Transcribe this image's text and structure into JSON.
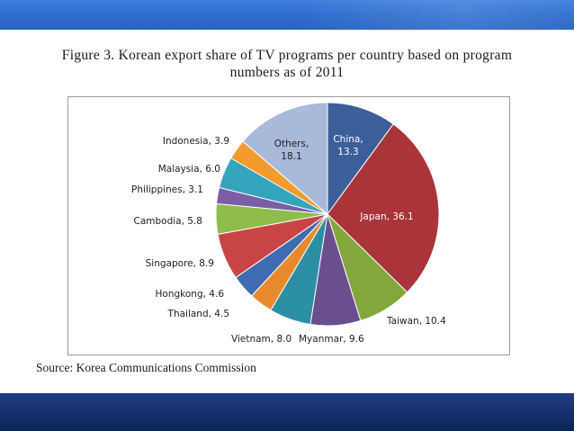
{
  "figure": {
    "caption": "Figure 3. Korean export share of TV programs per country based on program numbers as of 2011",
    "source": "Source: Korea Communications Commission"
  },
  "chart_data": {
    "type": "pie",
    "title": "Figure 3. Korean export share of TV programs per country based on program numbers as of 2011",
    "unit": "%",
    "start": "12 o'clock",
    "direction": "clockwise",
    "slices": [
      {
        "label": "China",
        "value": 13.3,
        "color": "#3a5f99",
        "text_color": "#ffffff",
        "label_inside": true
      },
      {
        "label": "Japan",
        "value": 36.1,
        "color": "#a9343a",
        "text_color": "#ffffff",
        "label_inside": true
      },
      {
        "label": "Taiwan",
        "value": 10.4,
        "color": "#82a83d",
        "text_color": "#222222",
        "label_inside": false
      },
      {
        "label": "Myanmar",
        "value": 9.6,
        "color": "#6a4f8f",
        "text_color": "#222222",
        "label_inside": false
      },
      {
        "label": "Vietnam",
        "value": 8.0,
        "color": "#2c8fa6",
        "text_color": "#222222",
        "label_inside": false
      },
      {
        "label": "Thailand",
        "value": 4.5,
        "color": "#e78a2e",
        "text_color": "#222222",
        "label_inside": false
      },
      {
        "label": "Hongkong",
        "value": 4.6,
        "color": "#3f6bb0",
        "text_color": "#222222",
        "label_inside": false
      },
      {
        "label": "Singapore",
        "value": 8.9,
        "color": "#c94545",
        "text_color": "#222222",
        "label_inside": false
      },
      {
        "label": "Cambodia",
        "value": 5.8,
        "color": "#8fbd4c",
        "text_color": "#222222",
        "label_inside": false
      },
      {
        "label": "Philippines",
        "value": 3.1,
        "color": "#7a5ea8",
        "text_color": "#222222",
        "label_inside": false
      },
      {
        "label": "Malaysia",
        "value": 6.0,
        "color": "#35a5bd",
        "text_color": "#222222",
        "label_inside": false
      },
      {
        "label": "Indonesia",
        "value": 3.9,
        "color": "#f59a2f",
        "text_color": "#222222",
        "label_inside": false
      },
      {
        "label": "Others",
        "value": 18.1,
        "color": "#a8b9d9",
        "text_color": "#222222",
        "label_inside": true
      }
    ]
  },
  "theme": {
    "top_band": "#2f6fd0",
    "bottom_band": "#16306e"
  }
}
